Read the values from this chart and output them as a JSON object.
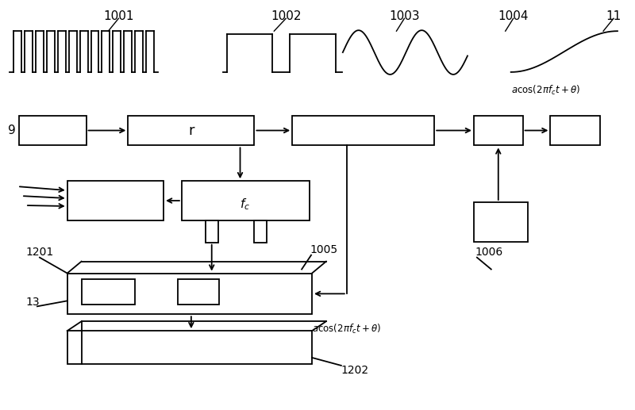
{
  "bg_color": "#ffffff",
  "line_color": "#000000",
  "fig_width": 8.0,
  "fig_height": 5.17,
  "dpi": 100
}
